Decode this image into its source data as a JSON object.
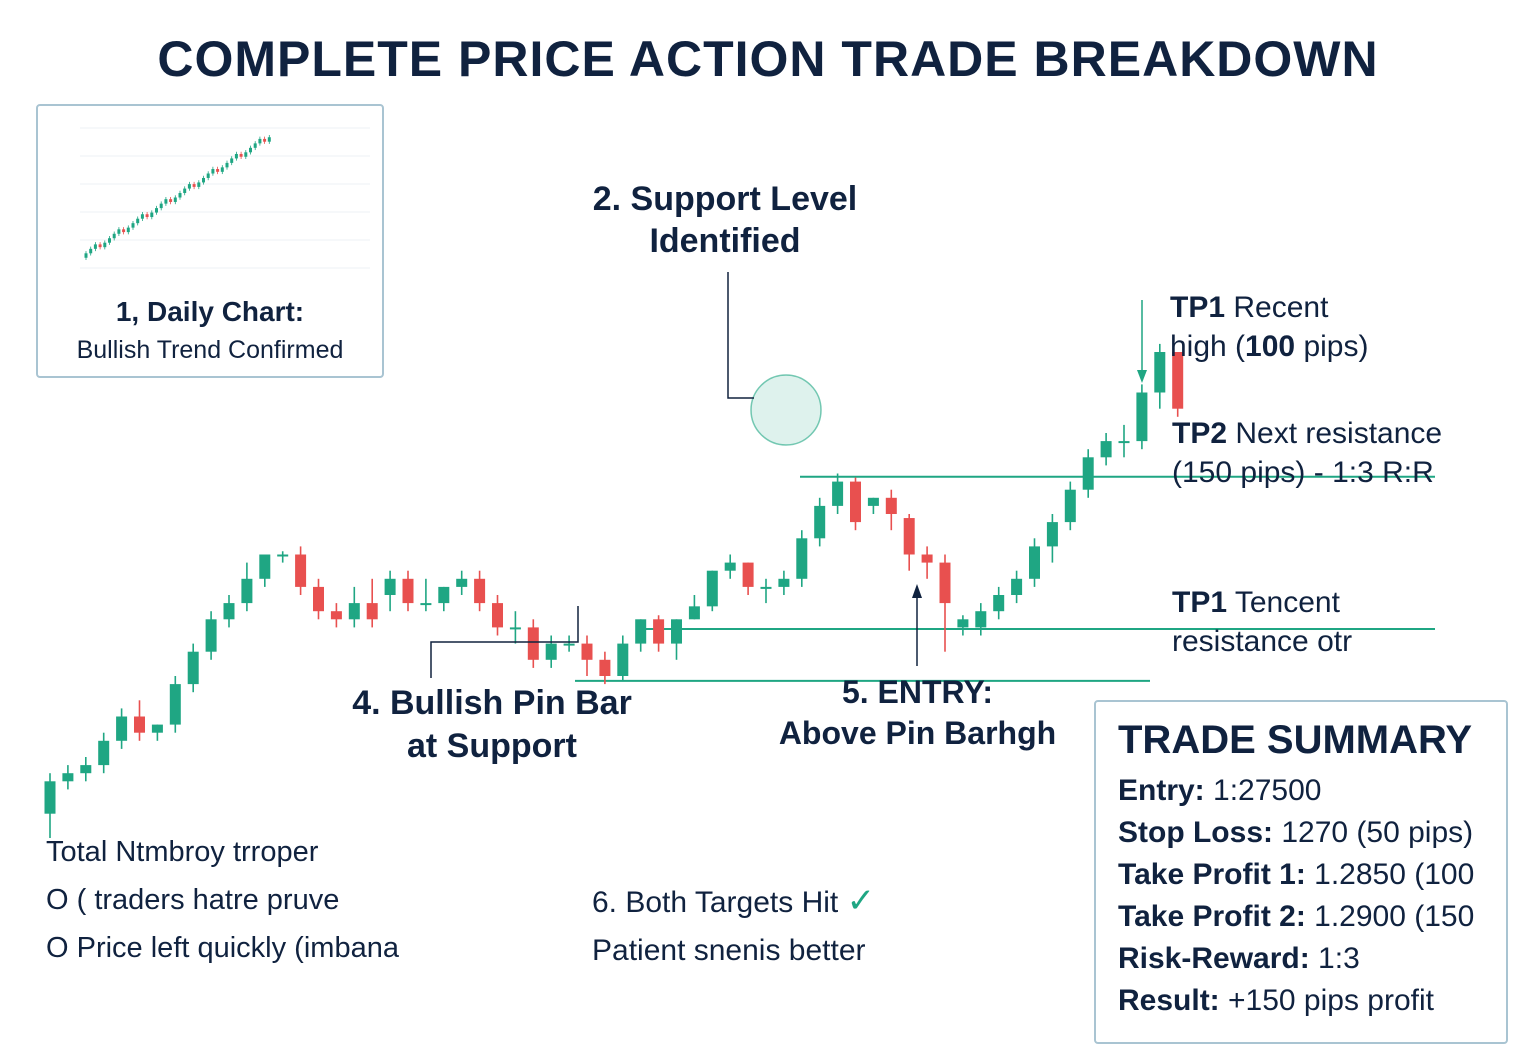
{
  "title": "COMPLETE PRICE ACTION TRADE BREAKDOWN",
  "inset": {
    "title": "1, Daily Chart:",
    "subtitle": "Bullish Trend Confirmed"
  },
  "annotations": {
    "support_line1": "2. Support Level",
    "support_line2": "Identified",
    "pinbar_line1": "4. Bullish Pin Bar",
    "pinbar_line2": "at Support",
    "entry_line1": "5. ENTRY:",
    "entry_line2": "Above Pin Barhgh",
    "tp1_key": "TP1",
    "tp1_line1": " Recent",
    "tp1_line2": "high (",
    "tp1_line2_bold": "100",
    "tp1_line2_end": " pips)",
    "tp2_key": "TP2",
    "tp2_line1": " Next resistance",
    "tp2_line2": "(150 pips) - 1:3 R:R",
    "tp1b_key": "TP1",
    "tp1b_line1": " Tencent",
    "tp1b_line2": "resistance otr"
  },
  "notes": {
    "left1": "Total Ntmbroy trroper",
    "left2": "O (  traders hatre pruve",
    "left3": "O Price left quickly (imbana",
    "right1": "6. Both Targets Hit",
    "right1_check": "✓",
    "right2": "Patient snenis better"
  },
  "summary": {
    "title": "TRADE SUMMARY",
    "rows": [
      {
        "key": "Entry:",
        "value": " 1:27500"
      },
      {
        "key": "Stop Loss:",
        "value": " 1270 (50 pips)"
      },
      {
        "key": "Take Profit 1:",
        "value": " 1.2850 (100"
      },
      {
        "key": "Take Profit 2:",
        "value": " 1.2900 (150"
      },
      {
        "key": "Risk-Reward:",
        "value": " 1:3"
      },
      {
        "key": "Result:",
        "value": " +150 pips profit"
      }
    ]
  },
  "colors": {
    "bull": "#1fa683",
    "bear": "#e8504f",
    "line": "#1fa683",
    "text": "#10223f"
  },
  "chart_data": {
    "type": "candlestick",
    "title": "COMPLETE PRICE ACTION TRADE BREAKDOWN",
    "ylim": [
      0,
      100
    ],
    "levels": [
      {
        "name": "resistance",
        "y": 64.6
      },
      {
        "name": "support",
        "y": 45.8
      },
      {
        "name": "stop",
        "y": 39.4
      }
    ],
    "candles": [
      {
        "o": 23,
        "h": 28,
        "l": 20,
        "c": 27
      },
      {
        "o": 27,
        "h": 29,
        "l": 26,
        "c": 28
      },
      {
        "o": 28,
        "h": 30,
        "l": 27,
        "c": 29
      },
      {
        "o": 29,
        "h": 33,
        "l": 28,
        "c": 32
      },
      {
        "o": 32,
        "h": 36,
        "l": 31,
        "c": 35
      },
      {
        "o": 35,
        "h": 37,
        "l": 32,
        "c": 33
      },
      {
        "o": 33,
        "h": 34,
        "l": 32,
        "c": 34
      },
      {
        "o": 34,
        "h": 40,
        "l": 33,
        "c": 39
      },
      {
        "o": 39,
        "h": 44,
        "l": 38,
        "c": 43
      },
      {
        "o": 43,
        "h": 48,
        "l": 42,
        "c": 47
      },
      {
        "o": 47,
        "h": 50,
        "l": 46,
        "c": 49
      },
      {
        "o": 49,
        "h": 54,
        "l": 48,
        "c": 52
      },
      {
        "o": 52,
        "h": 55,
        "l": 51,
        "c": 55
      },
      {
        "o": 55,
        "h": 55.4,
        "l": 54,
        "c": 55
      },
      {
        "o": 55,
        "h": 56,
        "l": 50,
        "c": 51
      },
      {
        "o": 51,
        "h": 52,
        "l": 47,
        "c": 48
      },
      {
        "o": 48,
        "h": 49,
        "l": 46,
        "c": 47
      },
      {
        "o": 47,
        "h": 51,
        "l": 46,
        "c": 49
      },
      {
        "o": 49,
        "h": 52,
        "l": 46,
        "c": 47
      },
      {
        "o": 50,
        "h": 53,
        "l": 48,
        "c": 52
      },
      {
        "o": 52,
        "h": 53,
        "l": 48,
        "c": 49
      },
      {
        "o": 49,
        "h": 52,
        "l": 48,
        "c": 49
      },
      {
        "o": 49,
        "h": 51,
        "l": 48,
        "c": 51
      },
      {
        "o": 51,
        "h": 53,
        "l": 50,
        "c": 52
      },
      {
        "o": 52,
        "h": 53,
        "l": 48,
        "c": 49
      },
      {
        "o": 49,
        "h": 50,
        "l": 45,
        "c": 46
      },
      {
        "o": 46,
        "h": 48,
        "l": 44,
        "c": 46
      },
      {
        "o": 46,
        "h": 47,
        "l": 41,
        "c": 42
      },
      {
        "o": 42,
        "h": 45,
        "l": 41,
        "c": 44
      },
      {
        "o": 44,
        "h": 45,
        "l": 43,
        "c": 44
      },
      {
        "o": 44,
        "h": 45,
        "l": 40,
        "c": 42
      },
      {
        "o": 42,
        "h": 43,
        "l": 39,
        "c": 40
      },
      {
        "o": 40,
        "h": 45,
        "l": 39.5,
        "c": 44
      },
      {
        "o": 44,
        "h": 47,
        "l": 43,
        "c": 47
      },
      {
        "o": 47,
        "h": 47.5,
        "l": 43,
        "c": 44
      },
      {
        "o": 44,
        "h": 47,
        "l": 42,
        "c": 47
      },
      {
        "o": 47,
        "h": 50,
        "l": 47,
        "c": 48.6
      },
      {
        "o": 48.6,
        "h": 53,
        "l": 48,
        "c": 53
      },
      {
        "o": 53,
        "h": 55,
        "l": 52,
        "c": 54
      },
      {
        "o": 54,
        "h": 54,
        "l": 50,
        "c": 51
      },
      {
        "o": 51,
        "h": 52,
        "l": 49,
        "c": 51
      },
      {
        "o": 51,
        "h": 53,
        "l": 50,
        "c": 52
      },
      {
        "o": 52,
        "h": 58,
        "l": 51,
        "c": 57
      },
      {
        "o": 57,
        "h": 62,
        "l": 56,
        "c": 61
      },
      {
        "o": 61,
        "h": 65,
        "l": 60,
        "c": 64
      },
      {
        "o": 64,
        "h": 64.5,
        "l": 58,
        "c": 59
      },
      {
        "o": 61,
        "h": 62,
        "l": 60,
        "c": 62
      },
      {
        "o": 62,
        "h": 63,
        "l": 58,
        "c": 60
      },
      {
        "o": 59.5,
        "h": 60,
        "l": 53,
        "c": 55
      },
      {
        "o": 55,
        "h": 56,
        "l": 52,
        "c": 54
      },
      {
        "o": 54,
        "h": 55,
        "l": 43,
        "c": 49
      },
      {
        "o": 46,
        "h": 47.5,
        "l": 45,
        "c": 47
      },
      {
        "o": 46,
        "h": 49,
        "l": 45,
        "c": 48
      },
      {
        "o": 48,
        "h": 51,
        "l": 47,
        "c": 50
      },
      {
        "o": 50,
        "h": 53,
        "l": 49,
        "c": 52
      },
      {
        "o": 52,
        "h": 57,
        "l": 51,
        "c": 56
      },
      {
        "o": 56,
        "h": 60,
        "l": 54,
        "c": 59
      },
      {
        "o": 59,
        "h": 64,
        "l": 58,
        "c": 63
      },
      {
        "o": 63,
        "h": 68,
        "l": 62,
        "c": 67
      },
      {
        "o": 67,
        "h": 70,
        "l": 66,
        "c": 69
      },
      {
        "o": 69,
        "h": 71,
        "l": 67,
        "c": 69
      },
      {
        "o": 69,
        "h": 76,
        "l": 68,
        "c": 75
      },
      {
        "o": 75,
        "h": 81,
        "l": 73,
        "c": 80
      },
      {
        "o": 80,
        "h": 80,
        "l": 72,
        "c": 73
      }
    ]
  }
}
